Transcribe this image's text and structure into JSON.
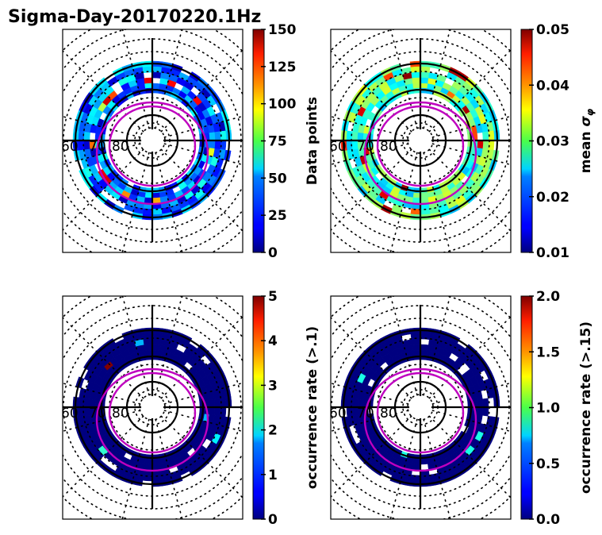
{
  "figure": {
    "title": "Sigma-Day-20170220.1Hz"
  },
  "chart_data": [
    {
      "type": "heatmap",
      "projection": "polar (magnetic latitude / MLT)",
      "panel": "top-left",
      "colormap": "jet",
      "colorbar": {
        "label": "Data points",
        "range": [
          0,
          150
        ],
        "ticks": [
          "0",
          "25",
          "50",
          "75",
          "100",
          "125",
          "150"
        ]
      },
      "latitude_circles": [
        80,
        70,
        60
      ],
      "latitude_labels": [
        "60",
        "70",
        "80"
      ],
      "dominant_values": "mostly 0-60, ring of higher counts (75-150) near 65-70 deg latitude",
      "contours": "two magenta closed contours (auroral oval boundaries)"
    },
    {
      "type": "heatmap",
      "projection": "polar (magnetic latitude / MLT)",
      "panel": "top-right",
      "colormap": "jet",
      "colorbar": {
        "label": "mean σ_φ",
        "range": [
          0.01,
          0.05
        ],
        "ticks": [
          "0.01",
          "0.02",
          "0.03",
          "0.04",
          "0.05"
        ]
      },
      "latitude_circles": [
        80,
        70,
        60
      ],
      "latitude_labels": [
        "60",
        "70",
        "80"
      ],
      "dominant_values": "mostly 0.02-0.03, isolated cells up to ~0.05 on dusk side",
      "contours": "two magenta closed contours (auroral oval boundaries)"
    },
    {
      "type": "heatmap",
      "projection": "polar (magnetic latitude / MLT)",
      "panel": "bottom-left",
      "colormap": "jet",
      "colorbar": {
        "label": "occurrence rate (>.1)",
        "range": [
          0,
          5
        ],
        "ticks": [
          "0",
          "1",
          "2",
          "3",
          "4",
          "5"
        ]
      },
      "latitude_circles": [
        80,
        70,
        60
      ],
      "latitude_labels": [
        "60",
        "70",
        "80"
      ],
      "dominant_values": "mostly 0, one cell ~5 at pre-midnight, a few cells ~1-2.5 on dawn side",
      "contours": "two magenta closed contours (auroral oval boundaries)"
    },
    {
      "type": "heatmap",
      "projection": "polar (magnetic latitude / MLT)",
      "panel": "bottom-right",
      "colormap": "jet",
      "colorbar": {
        "label": "occurrence rate (>.15)",
        "range": [
          0.0,
          2.0
        ],
        "ticks": [
          "0.0",
          "0.5",
          "1.0",
          "1.5",
          "2.0"
        ]
      },
      "latitude_circles": [
        80,
        70,
        60
      ],
      "latitude_labels": [
        "60",
        "70",
        "80"
      ],
      "dominant_values": "mostly 0, one cell ~0.8 on dawn side",
      "contours": "two magenta closed contours (auroral oval boundaries)"
    }
  ],
  "colors": {
    "contour": "#bf00bf",
    "grid": "#000000",
    "background": "#ffffff"
  }
}
